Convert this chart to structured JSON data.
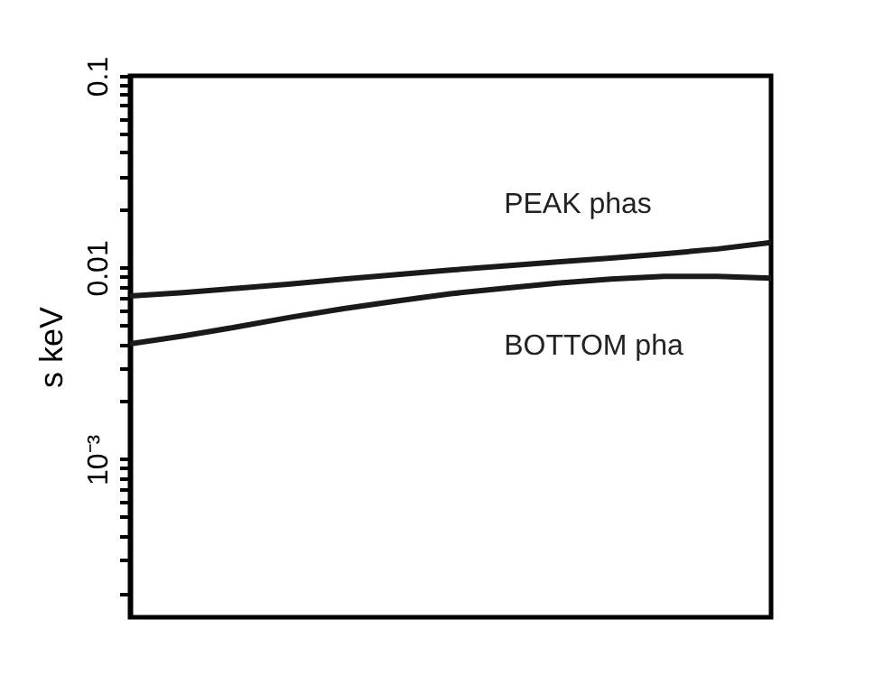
{
  "chart_data": {
    "type": "line",
    "ylabel": "s keV",
    "categories": [
      null,
      null,
      null,
      null,
      null,
      null,
      null,
      null,
      null,
      null,
      null,
      null,
      null
    ],
    "series": [
      {
        "color": "#1a1a1a",
        "values": [
          0.0071,
          0.0074,
          0.0078,
          0.0082,
          0.0087,
          0.0092,
          0.0097,
          0.0102,
          0.0107,
          0.0112,
          0.0118,
          0.0125,
          0.0135
        ]
      },
      {
        "color": "#1a1a1a",
        "values": [
          0.004,
          0.0044,
          0.0049,
          0.0055,
          0.0061,
          0.0067,
          0.0073,
          0.0078,
          0.0083,
          0.0087,
          0.009,
          0.009,
          0.0088
        ]
      }
    ],
    "annotations": [
      "PEAK phas",
      "BOTTOM pha"
    ],
    "log": "y",
    "ylim": [
      0.00015,
      0.1
    ],
    "yticks": [
      {
        "value": 0.0002,
        "label": null
      },
      {
        "value": 0.0003,
        "label": null
      },
      {
        "value": 0.0004,
        "label": null
      },
      {
        "value": 0.0005,
        "label": null
      },
      {
        "value": 0.0006,
        "label": null
      },
      {
        "value": 0.0007,
        "label": null
      },
      {
        "value": 0.0008,
        "label": null
      },
      {
        "value": 0.0009,
        "label": null
      },
      {
        "value": 0.001,
        "label": "10⁻³"
      },
      {
        "value": 0.002,
        "label": null
      },
      {
        "value": 0.003,
        "label": null
      },
      {
        "value": 0.004,
        "label": null
      },
      {
        "value": 0.005,
        "label": null
      },
      {
        "value": 0.006,
        "label": null
      },
      {
        "value": 0.007,
        "label": null
      },
      {
        "value": 0.008,
        "label": null
      },
      {
        "value": 0.009,
        "label": null
      },
      0.01,
      {
        "value": 0.02,
        "label": null
      },
      {
        "value": 0.03,
        "label": null
      },
      {
        "value": 0.04,
        "label": null
      },
      {
        "value": 0.05,
        "label": null
      },
      {
        "value": 0.06,
        "label": null
      },
      {
        "value": 0.07,
        "label": null
      },
      {
        "value": 0.08,
        "label": null
      },
      {
        "value": 0.09,
        "label": null
      },
      0.1
    ],
    "tick_labels": "y",
    "grid": false,
    "legend": false,
    "marker": "none",
    "line_style": "solid"
  }
}
